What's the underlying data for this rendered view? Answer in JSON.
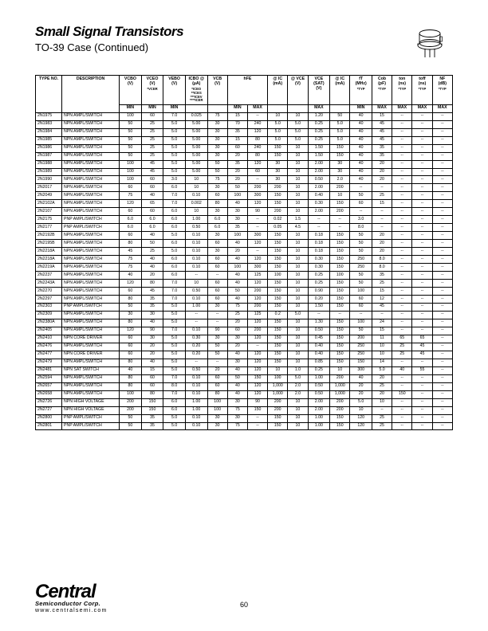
{
  "title": "Small Signal Transistors",
  "subtitle": "TO-39 Case   (Continued)",
  "page_number": "60",
  "brand": "Central",
  "brand_sub": "Semiconductor Corp.",
  "brand_url": "www.centralsemi.com",
  "headers": {
    "type_no": "TYPE NO.",
    "description": "DESCRIPTION",
    "vcbo": "VCBO",
    "vcbo_u": "(V)",
    "vceo": "VCEO",
    "vceo_u": "(V)",
    "vceo_note": "*VCER",
    "vebo": "VEBO",
    "vebo_u": "(V)",
    "icbo": "ICBO @",
    "icbo_u": "(µA)",
    "icbo_note": "*ICEO **ICES ***ICEV ****ICER",
    "vcb": "VCB",
    "vcb_u": "(V)",
    "hfe": "hFE",
    "at_ic": "@ IC",
    "at_ic_u": "(mA)",
    "at_vce": "@ VCE",
    "at_vce_u": "(V)",
    "vcesat": "VCE (SAT)",
    "vcesat_u": "(V)",
    "at_ic2": "@ IC",
    "at_ic2_u": "(mA)",
    "ft": "fT",
    "ft_u": "(MHz)",
    "ft_note": "*TYP",
    "cob": "Cob",
    "cob_u": "(pF)",
    "cob_note": "*TYP",
    "ton": "ton",
    "ton_u": "(ns)",
    "ton_note": "*TYP",
    "toff": "toff",
    "toff_u": "(ns)",
    "toff_note": "*TYP",
    "nf": "NF",
    "nf_u": "(dB)",
    "nf_note": "*TYP",
    "min": "MIN",
    "max": "MAX"
  },
  "rows": [
    [
      "2N1975",
      "NPN AMPL/SWITCH",
      "100",
      "60",
      "7.0",
      "0.025",
      "75",
      "15",
      "--",
      "10",
      "10",
      "1.20",
      "50",
      "40",
      "15",
      "--",
      "--",
      "--"
    ],
    [
      "2N1983",
      "NPN AMPL/SWITCH",
      "50",
      "25",
      "5.0",
      "5.00",
      "30",
      "70",
      "240",
      "5.0",
      "5.0",
      "0.25",
      "5.0",
      "40",
      "45",
      "--",
      "--",
      "--"
    ],
    [
      "2N1984",
      "NPN AMPL/SWITCH",
      "50",
      "25",
      "5.0",
      "5.00",
      "30",
      "35",
      "120",
      "5.0",
      "5.0",
      "0.25",
      "5.0",
      "40",
      "45",
      "--",
      "--",
      "--"
    ],
    [
      "2N1985",
      "NPN AMPL/SWITCH",
      "50",
      "25",
      "5.0",
      "5.00",
      "30",
      "15",
      "80",
      "5.0",
      "5.0",
      "0.25",
      "5.0",
      "40",
      "45",
      "--",
      "--",
      "--"
    ],
    [
      "2N1986",
      "NPN AMPL/SWITCH",
      "50",
      "25",
      "5.0",
      "5.00",
      "30",
      "60",
      "240",
      "150",
      "10",
      "1.50",
      "150",
      "40",
      "35",
      "--",
      "--",
      "--"
    ],
    [
      "2N1987",
      "NPN AMPL/SWITCH",
      "50",
      "25",
      "5.0",
      "5.00",
      "30",
      "20",
      "80",
      "150",
      "10",
      "1.50",
      "150",
      "40",
      "35",
      "--",
      "--",
      "--"
    ],
    [
      "2N1988",
      "NPN AMPL/SWITCH",
      "100",
      "45",
      "5.0",
      "5.00",
      "50",
      "35",
      "120",
      "30",
      "10",
      "2.00",
      "30",
      "40",
      "20",
      "--",
      "--",
      "--"
    ],
    [
      "2N1989",
      "NPN AMPL/SWITCH",
      "100",
      "45",
      "5.0",
      "5.00",
      "50",
      "20",
      "60",
      "30",
      "10",
      "2.00",
      "30",
      "40",
      "20",
      "--",
      "--",
      "--"
    ],
    [
      "2N1990",
      "NPN AMPL/SWITCH",
      "100",
      "60",
      "3.0",
      "10",
      "75",
      "20",
      "--",
      "30",
      "10",
      "0.50",
      "2.0",
      "40",
      "20",
      "--",
      "--",
      "--"
    ],
    [
      "2N2017",
      "NPN AMPL/SWITCH",
      "60",
      "60",
      "6.0",
      "10",
      "30",
      "50",
      "200",
      "200",
      "10",
      "2.00",
      "200",
      "--",
      "--",
      "--",
      "--",
      "--"
    ],
    [
      "2N2049",
      "NPN AMPL/SWITCH",
      "75",
      "40",
      "7.0",
      "0.10",
      "60",
      "100",
      "300",
      "150",
      "10",
      "0.40",
      "10",
      "50",
      "25",
      "--",
      "--",
      "--"
    ],
    [
      "2N2102A",
      "NPN AMPL/SWITCH",
      "120",
      "65",
      "7.0",
      "0.002",
      "80",
      "40",
      "120",
      "150",
      "10",
      "0.30",
      "150",
      "60",
      "15",
      "--",
      "--",
      "--"
    ],
    [
      "2N2107",
      "NPN AMPL/SWITCH",
      "60",
      "60",
      "6.0",
      "10",
      "30",
      "30",
      "90",
      "200",
      "10",
      "2.00",
      "200",
      "--",
      "--",
      "--",
      "--",
      "--"
    ],
    [
      "2N2175",
      "PNP AMPL/SWITCH",
      "6.0",
      "6.0",
      "6.0",
      "1.00",
      "6.0",
      "30",
      "--",
      "0.02",
      "1.5",
      "--",
      "--",
      "3.0",
      "--",
      "--",
      "--",
      "--"
    ],
    [
      "2N2177",
      "PNP AMPL/SWITCH",
      "6.0",
      "6.0",
      "6.0",
      "0.50",
      "6.0",
      "35",
      "--",
      "0.05",
      "4.5",
      "--",
      "--",
      "8.0",
      "--",
      "--",
      "--",
      "--"
    ],
    [
      "2N2192B",
      "NPN AMPL/SWITCH",
      "60",
      "40",
      "5.0",
      "0.10",
      "30",
      "100",
      "300",
      "150",
      "10",
      "0.18",
      "150",
      "50",
      "20",
      "--",
      "--",
      "--"
    ],
    [
      "2N2195B",
      "NPN AMPL/SWITCH",
      "80",
      "50",
      "6.0",
      "0.10",
      "60",
      "40",
      "120",
      "150",
      "10",
      "0.18",
      "150",
      "50",
      "20",
      "--",
      "--",
      "--"
    ],
    [
      "2N2218A",
      "NPN AMPL/SWITCH",
      "45",
      "25",
      "5.0",
      "0.10",
      "30",
      "20",
      "--",
      "150",
      "10",
      "0.18",
      "150",
      "50",
      "20",
      "--",
      "--",
      "--"
    ],
    [
      "2N2218A",
      "NPN AMPL/SWITCH",
      "75",
      "40",
      "6.0",
      "0.10",
      "60",
      "40",
      "120",
      "150",
      "10",
      "0.30",
      "150",
      "250",
      "8.0",
      "--",
      "--",
      "--"
    ],
    [
      "2N2219A",
      "NPN AMPL/SWITCH",
      "75",
      "40",
      "6.0",
      "0.10",
      "60",
      "100",
      "300",
      "150",
      "10",
      "0.30",
      "150",
      "250",
      "8.0",
      "--",
      "--",
      "--"
    ],
    [
      "2N2237",
      "NPN AMPL/SWITCH",
      "40",
      "20",
      "6.0",
      "--",
      "--",
      "40",
      "125",
      "100",
      "10",
      "0.25",
      "100",
      "50",
      "35",
      "--",
      "--",
      "--"
    ],
    [
      "2N2243A",
      "NPN AMPL/SWITCH",
      "120",
      "80",
      "7.0",
      "10",
      "60",
      "40",
      "120",
      "150",
      "10",
      "0.25",
      "150",
      "50",
      "25",
      "--",
      "--",
      "--"
    ],
    [
      "2N2270",
      "NPN AMPL/SWITCH",
      "60",
      "45",
      "7.0",
      "0.50",
      "60",
      "50",
      "200",
      "150",
      "10",
      "0.90",
      "150",
      "100",
      "15",
      "--",
      "--",
      "--"
    ],
    [
      "2N2297",
      "NPN AMPL/SWITCH",
      "80",
      "35",
      "7.0",
      "0.10",
      "60",
      "40",
      "120",
      "150",
      "10",
      "0.20",
      "150",
      "60",
      "12",
      "--",
      "--",
      "--"
    ],
    [
      "2N2303",
      "PNP AMPL/SWITCH",
      "50",
      "35",
      "5.0",
      "1.00",
      "30",
      "75",
      "200",
      "150",
      "10",
      "1.50",
      "150",
      "60",
      "45",
      "--",
      "--",
      "--"
    ],
    [
      "2N2309",
      "NPN AMPL/SWITCH",
      "30",
      "30",
      "5.0",
      "--",
      "--",
      "25",
      "125",
      "0.2",
      "5.0",
      "--",
      "--",
      "--",
      "--",
      "--",
      "--",
      "--"
    ],
    [
      "2N2380A",
      "NPN AMPL/SWITCH",
      "80",
      "40",
      "5.0",
      "--",
      "--",
      "20",
      "120",
      "150",
      "10",
      "1.30",
      "150",
      "100",
      "24",
      "--",
      "--",
      "--"
    ],
    [
      "2N2405",
      "NPN AMPL/SWITCH",
      "120",
      "90",
      "7.0",
      "0.10",
      "90",
      "60",
      "200",
      "150",
      "10",
      "0.50",
      "150",
      "50",
      "15",
      "--",
      "--",
      "--"
    ],
    [
      "2N2410",
      "NPN CORE DRIVER",
      "60",
      "30",
      "5.0",
      "0.30",
      "30",
      "30",
      "120",
      "150",
      "10",
      "0.45",
      "150",
      "200",
      "11",
      "65",
      "65",
      "--"
    ],
    [
      "2N2476",
      "NPN AMPL/SWITCH",
      "60",
      "20",
      "5.0",
      "0.20",
      "50",
      "20",
      "--",
      "150",
      "10",
      "0.40",
      "150",
      "250",
      "10",
      "25",
      "45",
      "--"
    ],
    [
      "2N2477",
      "NPN CORE DRIVER",
      "60",
      "20",
      "5.0",
      "0.20",
      "50",
      "40",
      "120",
      "150",
      "10",
      "0.40",
      "150",
      "250",
      "10",
      "25",
      "45",
      "--"
    ],
    [
      "2N2479",
      "NPN AMPL/SWITCH",
      "80",
      "40",
      "5.0",
      "--",
      "--",
      "30",
      "120",
      "150",
      "10",
      "0.85",
      "150",
      "150",
      "14",
      "--",
      "--",
      "--"
    ],
    [
      "2N2481",
      "NPN SAT SWITCH",
      "40",
      "15",
      "5.0",
      "0.50",
      "20",
      "40",
      "120",
      "10",
      "1.0",
      "0.25",
      "10",
      "300",
      "5.0",
      "40",
      "55",
      "--"
    ],
    [
      "2N2594",
      "NPN AMPL/SWITCH",
      "80",
      "60",
      "7.0",
      "0.10",
      "60",
      "50",
      "150",
      "100",
      "5.0",
      "1.00",
      "200",
      "40",
      "20",
      "--",
      "--",
      "--"
    ],
    [
      "2N2657",
      "NPN AMPL/SWITCH",
      "80",
      "60",
      "8.0",
      "0.10",
      "60",
      "40",
      "120",
      "1,000",
      "2.0",
      "0.50",
      "1,000",
      "20",
      "25",
      "--",
      "--",
      "--"
    ],
    [
      "2N2658",
      "NPN AMPL/SWITCH",
      "100",
      "80",
      "7.0",
      "0.10",
      "80",
      "40",
      "120",
      "1,000",
      "2.0",
      "0.50",
      "1,000",
      "20",
      "20",
      "150",
      "--",
      "--"
    ],
    [
      "2N2726",
      "NPN HIGH VOLTAGE",
      "200",
      "150",
      "6.0",
      "1.00",
      "100",
      "30",
      "90",
      "200",
      "10",
      "2.00",
      "200",
      "5.0",
      "10",
      "--",
      "--",
      "--"
    ],
    [
      "2N2727",
      "NPN HIGH VOLTAGE",
      "200",
      "150",
      "6.0",
      "1.00",
      "100",
      "75",
      "150",
      "200",
      "10",
      "2.00",
      "200",
      "10",
      "--",
      "--",
      "--",
      "--"
    ],
    [
      "2N2800",
      "PNP AMPL/SWITCH",
      "50",
      "35",
      "5.0",
      "0.10",
      "30",
      "30",
      "--",
      "150",
      "10",
      "1.00",
      "150",
      "120",
      "25",
      "--",
      "--",
      "--"
    ],
    [
      "2N2801",
      "PNP AMPL/SWITCH",
      "50",
      "35",
      "5.0",
      "0.10",
      "30",
      "75",
      "--",
      "150",
      "10",
      "1.00",
      "150",
      "120",
      "25",
      "--",
      "--",
      "--"
    ]
  ]
}
